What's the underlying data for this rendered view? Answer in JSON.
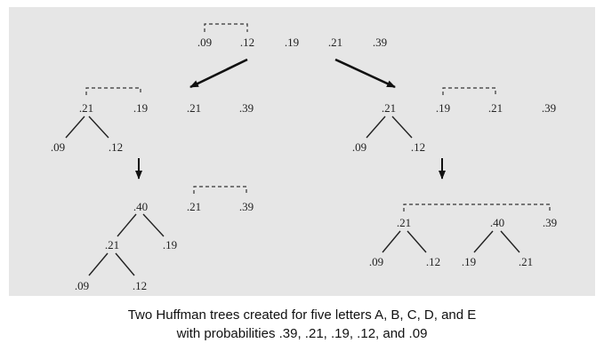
{
  "nodes": {
    "top": [
      ".09",
      ".12",
      ".19",
      ".21",
      ".39"
    ],
    "l2": [
      ".21",
      ".19",
      ".21",
      ".39"
    ],
    "l2_children": [
      ".09",
      ".12"
    ],
    "r2": [
      ".21",
      ".19",
      ".21",
      ".39"
    ],
    "r2_children": [
      ".09",
      ".12"
    ],
    "l3_root": ".40",
    "l3_mid": ".21",
    "l3_right_leaf": ".19",
    "l3_leaves": [
      ".09",
      ".12"
    ],
    "l3_pair": [
      ".21",
      ".39"
    ],
    "r3_left": ".21",
    "r3_left_leaves": [
      ".09",
      ".12"
    ],
    "r3_mid": ".40",
    "r3_mid_leaves": [
      ".19",
      ".21"
    ],
    "r3_right": ".39"
  },
  "caption": {
    "line1": "Two Huffman trees created for five letters A, B, C, D, and E",
    "line2": "with probabilities .39, .21, .19, .12, and .09"
  }
}
